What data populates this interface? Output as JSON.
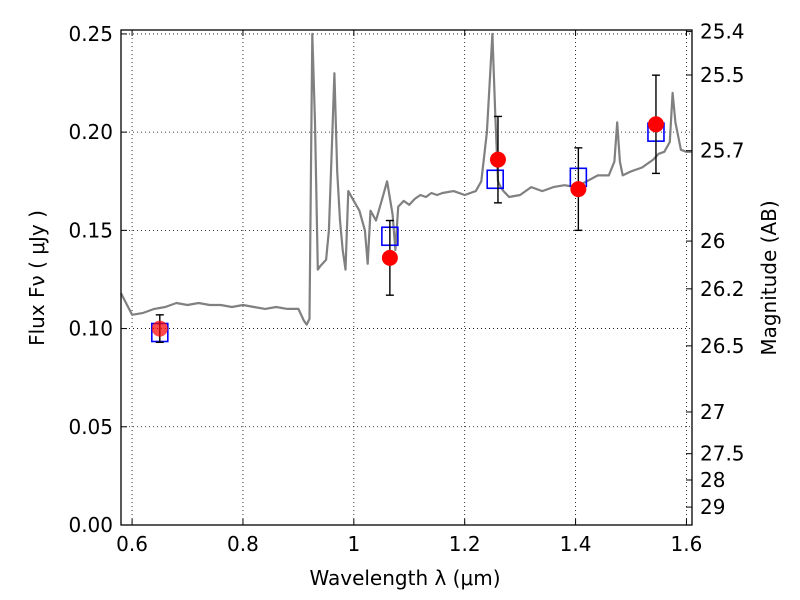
{
  "chart_data": {
    "type": "scatter",
    "xlabel": "Wavelength  λ (μm)",
    "ylabel": "Flux  Fν  ( μJy )",
    "y2label": "Magnitude (AB)",
    "xlim": [
      0.58,
      1.61
    ],
    "ylim": [
      0.0,
      0.252
    ],
    "grid": true,
    "x_ticks": [
      0.6,
      0.8,
      1.0,
      1.2,
      1.4,
      1.6
    ],
    "x_tick_labels": [
      "0.6",
      "0.8",
      "1",
      "1.2",
      "1.4",
      "1.6"
    ],
    "y_ticks": [
      0.0,
      0.05,
      0.1,
      0.15,
      0.2,
      0.25
    ],
    "y_tick_labels": [
      "0.00",
      "0.05",
      "0.10",
      "0.15",
      "0.20",
      "0.25"
    ],
    "mag_ticks": [
      "25.4",
      "25.5",
      "25.7",
      "26",
      "26.2",
      "26.5",
      "27",
      "27.5",
      "28",
      "29"
    ],
    "colors": {
      "model": "#808080",
      "observed": "#ff0000",
      "synthetic": "#0000ff",
      "errorbar": "#000000"
    },
    "series": [
      {
        "kind": "model_spectrum",
        "x": [
          0.58,
          0.6,
          0.62,
          0.64,
          0.66,
          0.68,
          0.7,
          0.72,
          0.74,
          0.76,
          0.78,
          0.8,
          0.82,
          0.84,
          0.86,
          0.88,
          0.9,
          0.91,
          0.915,
          0.92,
          0.925,
          0.93,
          0.935,
          0.94,
          0.95,
          0.955,
          0.96,
          0.965,
          0.97,
          0.975,
          0.98,
          0.985,
          0.99,
          1.0,
          1.01,
          1.02,
          1.025,
          1.03,
          1.04,
          1.05,
          1.06,
          1.07,
          1.075,
          1.08,
          1.09,
          1.1,
          1.11,
          1.12,
          1.13,
          1.14,
          1.15,
          1.16,
          1.18,
          1.2,
          1.22,
          1.23,
          1.24,
          1.25,
          1.255,
          1.26,
          1.265,
          1.27,
          1.28,
          1.3,
          1.32,
          1.34,
          1.36,
          1.38,
          1.4,
          1.42,
          1.44,
          1.46,
          1.47,
          1.475,
          1.48,
          1.485,
          1.5,
          1.52,
          1.54,
          1.55,
          1.56,
          1.57,
          1.575,
          1.58,
          1.59,
          1.6,
          1.61
        ],
        "y": [
          0.118,
          0.107,
          0.108,
          0.11,
          0.111,
          0.113,
          0.112,
          0.113,
          0.112,
          0.112,
          0.111,
          0.112,
          0.111,
          0.11,
          0.111,
          0.11,
          0.11,
          0.104,
          0.102,
          0.105,
          0.25,
          0.205,
          0.13,
          0.132,
          0.135,
          0.15,
          0.19,
          0.23,
          0.18,
          0.155,
          0.14,
          0.13,
          0.17,
          0.165,
          0.16,
          0.15,
          0.133,
          0.16,
          0.155,
          0.165,
          0.175,
          0.158,
          0.14,
          0.162,
          0.165,
          0.163,
          0.166,
          0.168,
          0.167,
          0.169,
          0.168,
          0.169,
          0.17,
          0.168,
          0.17,
          0.175,
          0.2,
          0.25,
          0.21,
          0.175,
          0.172,
          0.17,
          0.167,
          0.168,
          0.172,
          0.17,
          0.172,
          0.173,
          0.172,
          0.175,
          0.178,
          0.178,
          0.185,
          0.205,
          0.185,
          0.178,
          0.18,
          0.182,
          0.186,
          0.189,
          0.19,
          0.195,
          0.22,
          0.205,
          0.191,
          0.19,
          0.19
        ]
      },
      {
        "kind": "observed",
        "x": [
          0.65,
          1.065,
          1.26,
          1.405,
          1.545
        ],
        "y": [
          0.1,
          0.136,
          0.186,
          0.171,
          0.204
        ],
        "yerr": [
          0.007,
          0.019,
          0.022,
          0.021,
          0.025
        ]
      },
      {
        "kind": "synthetic",
        "x": [
          0.65,
          1.065,
          1.255,
          1.405,
          1.545
        ],
        "y": [
          0.098,
          0.147,
          0.176,
          0.177,
          0.2
        ]
      }
    ]
  }
}
